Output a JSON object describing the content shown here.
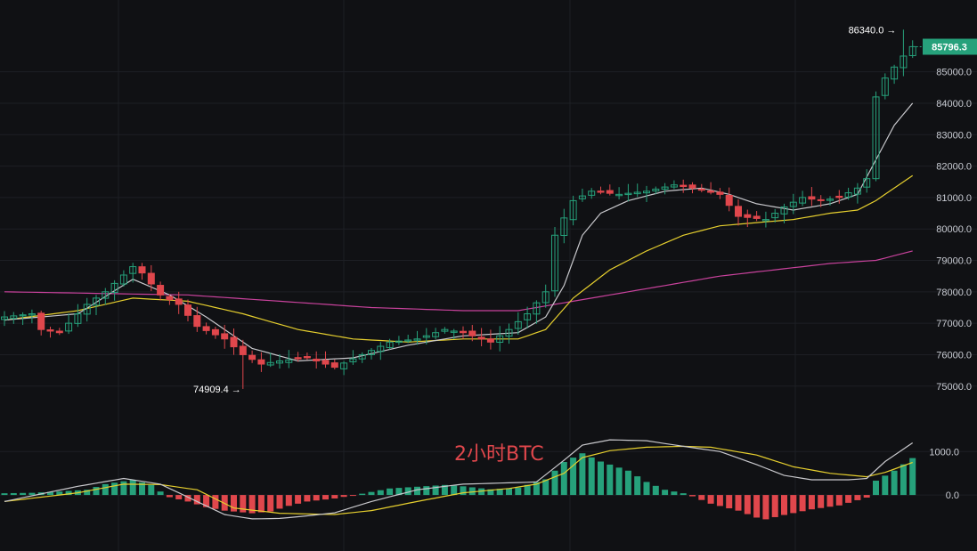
{
  "chart_data": {
    "type": "candlestick",
    "title": "2小时BTC",
    "colors": {
      "background": "#101114",
      "up": "#26a17b",
      "down": "#e0474c",
      "ma_fast": "#c8c8cc",
      "ma_mid": "#e6cf2e",
      "ma_slow": "#c8429c",
      "macd_line": "#c8c8cc",
      "signal_line": "#e6cf2e",
      "title": "#e0474c",
      "price_tag": "#26a17b"
    },
    "price_axis": {
      "min": 74200,
      "max": 87000,
      "ticks": [
        75000,
        76000,
        77000,
        78000,
        79000,
        80000,
        81000,
        82000,
        83000,
        84000,
        85000
      ],
      "labels": [
        "75000.0",
        "76000.0",
        "77000.0",
        "78000.0",
        "79000.0",
        "80000.0",
        "81000.0",
        "82000.0",
        "83000.0",
        "84000.0",
        "85000.0"
      ]
    },
    "last_price": {
      "value": 85796.3,
      "label": "85796.3"
    },
    "high_marker": {
      "value": 86340,
      "label": "86340.0",
      "index": 98
    },
    "low_marker": {
      "value": 74909.4,
      "label": "74909.4",
      "index": 26
    },
    "macd_axis": {
      "min": -900,
      "max": 1600,
      "ticks": [
        0,
        1000
      ],
      "labels": [
        "0.0",
        "1000.0"
      ]
    },
    "ohlc_knots": [
      [
        0,
        77200
      ],
      [
        3,
        77300
      ],
      [
        4,
        76800
      ],
      [
        6,
        76700
      ],
      [
        9,
        77600
      ],
      [
        11,
        78000
      ],
      [
        14,
        78800
      ],
      [
        15,
        78600
      ],
      [
        17,
        77900
      ],
      [
        19,
        77600
      ],
      [
        21,
        76900
      ],
      [
        24,
        76500
      ],
      [
        26,
        76000
      ],
      [
        28,
        75700
      ],
      [
        30,
        75800
      ],
      [
        33,
        75900
      ],
      [
        36,
        75600
      ],
      [
        39,
        76000
      ],
      [
        42,
        76400
      ],
      [
        45,
        76500
      ],
      [
        48,
        76800
      ],
      [
        50,
        76700
      ],
      [
        53,
        76400
      ],
      [
        55,
        76800
      ],
      [
        57,
        77300
      ],
      [
        59,
        78000
      ],
      [
        60,
        79800
      ],
      [
        62,
        80900
      ],
      [
        64,
        81200
      ],
      [
        67,
        81100
      ],
      [
        70,
        81200
      ],
      [
        73,
        81400
      ],
      [
        75,
        81300
      ],
      [
        78,
        81100
      ],
      [
        80,
        80400
      ],
      [
        83,
        80300
      ],
      [
        85,
        80700
      ],
      [
        87,
        81000
      ],
      [
        89,
        80900
      ],
      [
        91,
        81000
      ],
      [
        93,
        81300
      ],
      [
        94,
        81600
      ],
      [
        95,
        84200
      ],
      [
        96,
        84800
      ],
      [
        98,
        85500
      ],
      [
        99,
        85800
      ]
    ],
    "ma_fast_knots": [
      [
        0,
        77100
      ],
      [
        8,
        77300
      ],
      [
        14,
        78400
      ],
      [
        18,
        77900
      ],
      [
        22,
        77200
      ],
      [
        27,
        76200
      ],
      [
        32,
        75800
      ],
      [
        38,
        75900
      ],
      [
        44,
        76300
      ],
      [
        50,
        76600
      ],
      [
        56,
        76700
      ],
      [
        59,
        77200
      ],
      [
        61,
        78200
      ],
      [
        63,
        79800
      ],
      [
        65,
        80500
      ],
      [
        68,
        80900
      ],
      [
        72,
        81200
      ],
      [
        76,
        81300
      ],
      [
        79,
        81100
      ],
      [
        82,
        80800
      ],
      [
        86,
        80600
      ],
      [
        90,
        80800
      ],
      [
        93,
        81100
      ],
      [
        95,
        82200
      ],
      [
        97,
        83300
      ],
      [
        99,
        84000
      ]
    ],
    "ma_mid_knots": [
      [
        0,
        77100
      ],
      [
        8,
        77400
      ],
      [
        14,
        77800
      ],
      [
        20,
        77700
      ],
      [
        26,
        77300
      ],
      [
        32,
        76800
      ],
      [
        38,
        76500
      ],
      [
        44,
        76400
      ],
      [
        50,
        76500
      ],
      [
        56,
        76500
      ],
      [
        59,
        76800
      ],
      [
        62,
        77800
      ],
      [
        66,
        78700
      ],
      [
        70,
        79300
      ],
      [
        74,
        79800
      ],
      [
        78,
        80100
      ],
      [
        82,
        80200
      ],
      [
        86,
        80300
      ],
      [
        90,
        80500
      ],
      [
        93,
        80600
      ],
      [
        95,
        80900
      ],
      [
        97,
        81300
      ],
      [
        99,
        81700
      ]
    ],
    "ma_slow_knots": [
      [
        0,
        78000
      ],
      [
        10,
        77950
      ],
      [
        20,
        77900
      ],
      [
        30,
        77700
      ],
      [
        40,
        77500
      ],
      [
        50,
        77400
      ],
      [
        56,
        77400
      ],
      [
        60,
        77600
      ],
      [
        66,
        77900
      ],
      [
        72,
        78200
      ],
      [
        78,
        78500
      ],
      [
        84,
        78700
      ],
      [
        90,
        78900
      ],
      [
        95,
        79000
      ],
      [
        99,
        79300
      ]
    ],
    "macd_hist_knots": [
      [
        0,
        40
      ],
      [
        3,
        50
      ],
      [
        6,
        80
      ],
      [
        9,
        120
      ],
      [
        11,
        250
      ],
      [
        14,
        350
      ],
      [
        16,
        230
      ],
      [
        17,
        80
      ],
      [
        18,
        -50
      ],
      [
        20,
        -150
      ],
      [
        22,
        -280
      ],
      [
        24,
        -360
      ],
      [
        27,
        -420
      ],
      [
        29,
        -380
      ],
      [
        31,
        -250
      ],
      [
        33,
        -150
      ],
      [
        36,
        -80
      ],
      [
        39,
        30
      ],
      [
        42,
        150
      ],
      [
        45,
        190
      ],
      [
        48,
        230
      ],
      [
        50,
        200
      ],
      [
        53,
        130
      ],
      [
        56,
        170
      ],
      [
        59,
        360
      ],
      [
        61,
        760
      ],
      [
        63,
        960
      ],
      [
        65,
        770
      ],
      [
        68,
        560
      ],
      [
        70,
        300
      ],
      [
        72,
        120
      ],
      [
        74,
        40
      ],
      [
        75,
        -30
      ],
      [
        77,
        -200
      ],
      [
        80,
        -360
      ],
      [
        82,
        -520
      ],
      [
        83,
        -560
      ],
      [
        85,
        -460
      ],
      [
        88,
        -330
      ],
      [
        91,
        -240
      ],
      [
        93,
        -120
      ],
      [
        94,
        -60
      ],
      [
        95,
        330
      ],
      [
        97,
        560
      ],
      [
        99,
        850
      ]
    ],
    "macd_line_knots": [
      [
        0,
        -150
      ],
      [
        8,
        200
      ],
      [
        13,
        380
      ],
      [
        17,
        250
      ],
      [
        21,
        -150
      ],
      [
        24,
        -450
      ],
      [
        27,
        -550
      ],
      [
        30,
        -540
      ],
      [
        33,
        -480
      ],
      [
        36,
        -410
      ],
      [
        40,
        -150
      ],
      [
        45,
        120
      ],
      [
        50,
        250
      ],
      [
        55,
        280
      ],
      [
        58,
        300
      ],
      [
        61,
        800
      ],
      [
        63,
        1150
      ],
      [
        66,
        1270
      ],
      [
        70,
        1250
      ],
      [
        74,
        1120
      ],
      [
        78,
        1000
      ],
      [
        82,
        700
      ],
      [
        85,
        450
      ],
      [
        88,
        350
      ],
      [
        92,
        350
      ],
      [
        94,
        380
      ],
      [
        96,
        770
      ],
      [
        99,
        1200
      ]
    ],
    "signal_line_knots": [
      [
        0,
        -150
      ],
      [
        8,
        50
      ],
      [
        13,
        250
      ],
      [
        17,
        240
      ],
      [
        21,
        120
      ],
      [
        25,
        -300
      ],
      [
        30,
        -420
      ],
      [
        36,
        -450
      ],
      [
        40,
        -360
      ],
      [
        45,
        -150
      ],
      [
        50,
        50
      ],
      [
        55,
        150
      ],
      [
        58,
        250
      ],
      [
        61,
        500
      ],
      [
        63,
        860
      ],
      [
        66,
        1020
      ],
      [
        70,
        1100
      ],
      [
        74,
        1120
      ],
      [
        77,
        1100
      ],
      [
        82,
        920
      ],
      [
        86,
        650
      ],
      [
        90,
        500
      ],
      [
        94,
        420
      ],
      [
        96,
        520
      ],
      [
        99,
        750
      ]
    ]
  }
}
